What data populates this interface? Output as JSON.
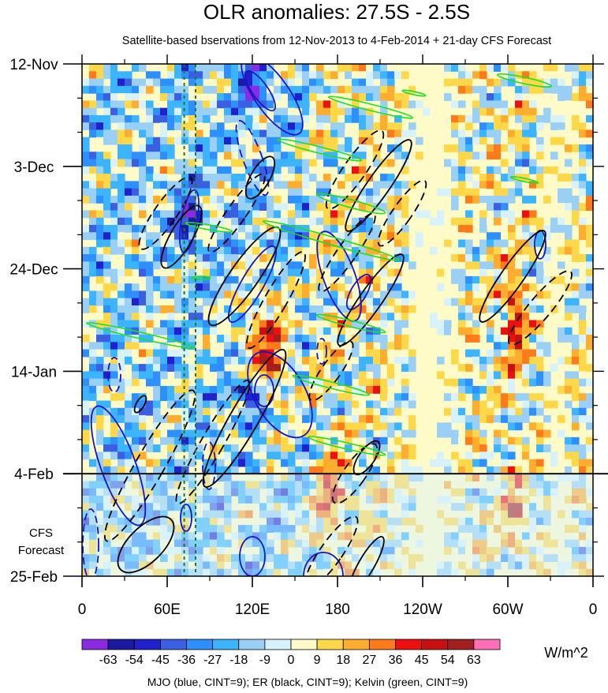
{
  "chart_data": {
    "type": "heatmap",
    "title": "OLR anomalies: 27.5S - 2.5S",
    "subtitle": "Satellite-based bservations from 12-Nov-2013 to 4-Feb-2014 + 21-day CFS Forecast",
    "x_tick_labels": [
      "0",
      "60E",
      "120E",
      "180",
      "120W",
      "60W",
      "0"
    ],
    "x_ticks_deg": [
      0,
      60,
      120,
      180,
      240,
      300,
      360
    ],
    "xlim_deg": [
      0,
      360
    ],
    "y_tick_labels": [
      "12-Nov",
      "3-Dec",
      "24-Dec",
      "14-Jan",
      "4-Feb",
      "25-Feb"
    ],
    "y_ticks_day": [
      0,
      21,
      42,
      63,
      84,
      105
    ],
    "ylim_day": [
      0,
      105
    ],
    "forecast_start_label": "4-Feb",
    "forecast_start_day": 84,
    "forecast_label": [
      "CFS",
      "Forecast"
    ],
    "colorbar": {
      "levels": [
        "-63",
        "-54",
        "-45",
        "-36",
        "-27",
        "-18",
        "-9",
        "0",
        "9",
        "18",
        "27",
        "36",
        "45",
        "54",
        "63"
      ],
      "colors": [
        "#8a2be2",
        "#1a1aa0",
        "#2020cc",
        "#3a5fe0",
        "#2e8fff",
        "#3cb4ff",
        "#9ad0f5",
        "#d7f2fb",
        "#fffbc8",
        "#ffd84a",
        "#ffad2e",
        "#ff7a1a",
        "#ee1010",
        "#c81010",
        "#a02020",
        "#ff70b8"
      ],
      "units": "W/m^2"
    },
    "reference_lines_deg": [
      72,
      80
    ],
    "contour_note": "MJO (blue, CINT=9); ER (black, CINT=9); Kelvin (green, CINT=9)",
    "grid": false
  }
}
